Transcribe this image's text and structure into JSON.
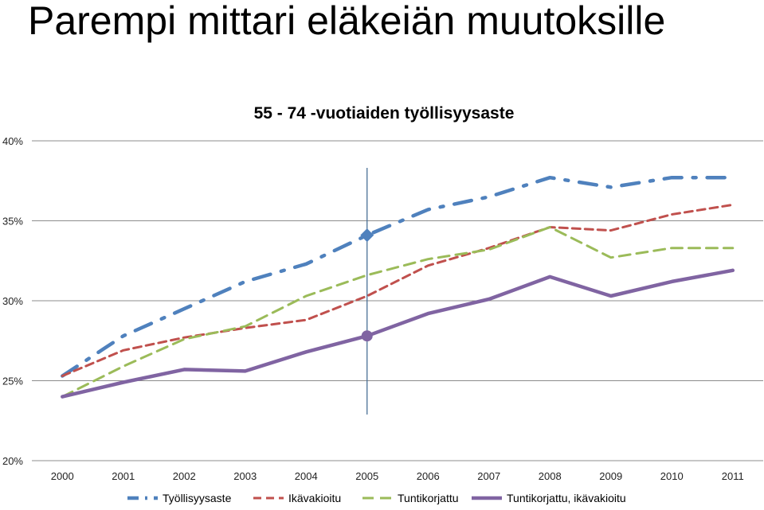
{
  "slide": {
    "title": "Parempi mittari eläkeiän muutoksille"
  },
  "chart_data": {
    "type": "line",
    "title": "55 - 74 -vuotiaiden työllisyysaste",
    "xlabel": "",
    "ylabel": "",
    "categories": [
      "2000",
      "2001",
      "2002",
      "2003",
      "2004",
      "2005",
      "2006",
      "2007",
      "2008",
      "2009",
      "2010",
      "2011"
    ],
    "ylim": [
      20,
      40
    ],
    "y_ticks": [
      20,
      25,
      30,
      35,
      40
    ],
    "y_tick_labels": [
      "20%",
      "25%",
      "30%",
      "35%",
      "40%"
    ],
    "grid": true,
    "legend": "bottom",
    "marker_category": "2005",
    "series": [
      {
        "name": "Työllisyysaste",
        "color": "#4f81bd",
        "dash": "dashdot",
        "values": [
          25.3,
          27.8,
          29.5,
          31.2,
          32.3,
          34.1,
          35.7,
          36.5,
          37.7,
          37.1,
          37.7,
          37.7
        ]
      },
      {
        "name": "Ikävakioitu",
        "color": "#c0504d",
        "dash": "dash",
        "values": [
          25.3,
          26.9,
          27.7,
          28.3,
          28.8,
          30.3,
          32.2,
          33.3,
          34.6,
          34.4,
          35.4,
          36.0
        ]
      },
      {
        "name": "Tuntikorjattu",
        "color": "#9bbb59",
        "dash": "longdash",
        "values": [
          24.0,
          25.9,
          27.6,
          28.4,
          30.3,
          31.6,
          32.6,
          33.2,
          34.6,
          32.7,
          33.3,
          33.3
        ]
      },
      {
        "name": "Tuntikorjattu, ikävakioitu",
        "color": "#8064a2",
        "dash": "solid",
        "values": [
          24.0,
          24.9,
          25.7,
          25.6,
          26.8,
          27.8,
          29.2,
          30.1,
          31.5,
          30.3,
          31.2,
          31.9
        ]
      }
    ]
  }
}
